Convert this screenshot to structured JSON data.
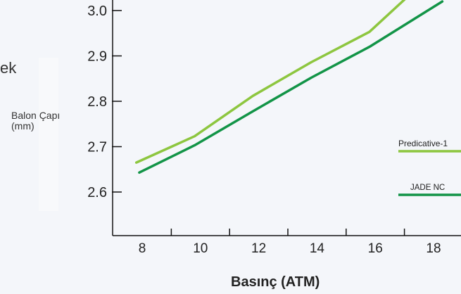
{
  "side_text": "ek",
  "chart_data": {
    "type": "line",
    "title": "",
    "xlabel": "Basınç (ATM)",
    "ylabel": "Balon Çapı (mm)",
    "ylabel_lines": [
      "Balon Çapı",
      "(mm)"
    ],
    "xlim": [
      7,
      19
    ],
    "ylim": [
      2.5,
      3.0
    ],
    "x_ticks": [
      8,
      10,
      12,
      14,
      16,
      18
    ],
    "y_ticks": [
      2.6,
      2.7,
      2.8,
      2.9,
      3.0
    ],
    "y_tick_labels": [
      "2.6",
      "2.7",
      "2.8",
      "2.9",
      "3.0"
    ],
    "grid": false,
    "legend_position": "right",
    "series": [
      {
        "name": "Predicative-1",
        "color": "#8dc63f",
        "points": [
          [
            7.8,
            2.665
          ],
          [
            9.8,
            2.723
          ],
          [
            11.8,
            2.812
          ],
          [
            13.8,
            2.886
          ],
          [
            15.8,
            2.953
          ],
          [
            17.1,
            3.03
          ]
        ]
      },
      {
        "name": "JADE NC",
        "color": "#129447",
        "points": [
          [
            7.9,
            2.643
          ],
          [
            9.8,
            2.703
          ],
          [
            11.8,
            2.778
          ],
          [
            13.8,
            2.852
          ],
          [
            15.8,
            2.92
          ],
          [
            17.8,
            3.0
          ],
          [
            18.3,
            3.02
          ]
        ]
      }
    ]
  }
}
